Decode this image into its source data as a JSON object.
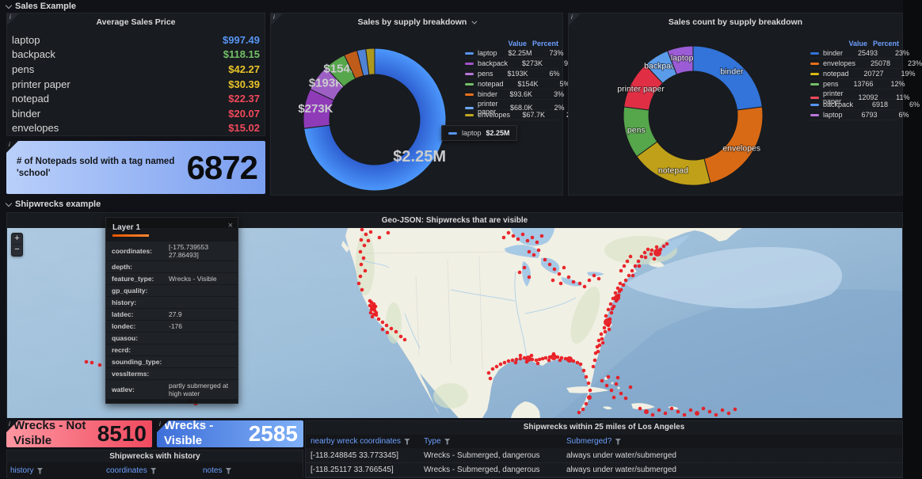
{
  "sections": {
    "sales": "Sales Example",
    "shipwrecks": "Shipwrecks example"
  },
  "avg_sales": {
    "title": "Average Sales Price",
    "rows": [
      {
        "label": "laptop",
        "value": "$997.49",
        "color": "#5794f2"
      },
      {
        "label": "backpack",
        "value": "$118.15",
        "color": "#73bf69"
      },
      {
        "label": "pens",
        "value": "$42.27",
        "color": "#eac52a"
      },
      {
        "label": "printer paper",
        "value": "$30.39",
        "color": "#eac52a"
      },
      {
        "label": "notepad",
        "value": "$22.37",
        "color": "#f2495c"
      },
      {
        "label": "binder",
        "value": "$20.07",
        "color": "#f2495c"
      },
      {
        "label": "envelopes",
        "value": "$15.02",
        "color": "#f2495c"
      }
    ]
  },
  "notepad_stat": {
    "label": "# of Notepads sold with a tag named 'school'",
    "value": "6872"
  },
  "chart_data": [
    {
      "type": "pie",
      "title": "Sales by supply breakdown",
      "labels": "value",
      "legend_position": "right",
      "legend_headers": [
        "Value",
        "Percent"
      ],
      "series": [
        {
          "name": "laptop",
          "value": "$2.25M",
          "percent": 73,
          "color": "#3d78e8",
          "swatch": "#5794f2"
        },
        {
          "name": "backpack",
          "value": "$273K",
          "percent": 9,
          "color": "#8f3bb8",
          "swatch": "#a352cc"
        },
        {
          "name": "pens",
          "value": "$193K",
          "percent": 6,
          "color": "#9d5fc4",
          "swatch": "#b877d9"
        },
        {
          "name": "notepad",
          "value": "$154K",
          "percent": 5,
          "color": "#56a64b",
          "swatch": "#73bf69"
        },
        {
          "name": "binder",
          "value": "$93.6K",
          "percent": 3,
          "color": "#c05c1a",
          "swatch": "#e8701a"
        },
        {
          "name": "printer paper",
          "value": "$68.0K",
          "percent": 2,
          "color": "#5083d6",
          "swatch": "#6ca7f2"
        },
        {
          "name": "envelopes",
          "value": "$67.7K",
          "percent": 2,
          "color": "#ad981f",
          "swatch": "#c0a722"
        }
      ],
      "tooltip": {
        "name": "laptop",
        "value": "$2.25M",
        "swatch": "#5794f2"
      }
    },
    {
      "type": "pie",
      "title": "Sales count by supply breakdown",
      "labels": "name",
      "legend_position": "right",
      "legend_headers": [
        "Value",
        "Percent"
      ],
      "series": [
        {
          "name": "binder",
          "value": "25493",
          "percent": 23,
          "color": "#3274d9",
          "swatch": "#3274d9"
        },
        {
          "name": "envelopes",
          "value": "25078",
          "percent": 23,
          "color": "#d96a15",
          "swatch": "#e8701a"
        },
        {
          "name": "notepad",
          "value": "20727",
          "percent": 19,
          "color": "#bfa018",
          "swatch": "#d9ba14"
        },
        {
          "name": "pens",
          "value": "13766",
          "percent": 12,
          "color": "#56a64b",
          "swatch": "#73bf69"
        },
        {
          "name": "printer paper",
          "value": "12092",
          "percent": 11,
          "color": "#e02f44",
          "swatch": "#f2495c"
        },
        {
          "name": "backpack",
          "value": "6918",
          "percent": 6,
          "color": "#5b9cea",
          "swatch": "#5794f2"
        },
        {
          "name": "laptop",
          "value": "6793",
          "percent": 6,
          "color": "#9b5cd6",
          "swatch": "#b877d9"
        }
      ]
    }
  ],
  "map": {
    "title": "Geo-JSON: Shipwrecks that are visible",
    "zoom_in": "+",
    "zoom_out": "−",
    "marker_color": "#e8191f",
    "tooltip": {
      "title": "Layer 1",
      "close": "×",
      "fields": [
        {
          "label": "coordinates:",
          "value": "[-175.739553 27.86493]"
        },
        {
          "label": "depth:",
          "value": ""
        },
        {
          "label": "feature_type:",
          "value": "Wrecks - Visible"
        },
        {
          "label": "gp_quality:",
          "value": ""
        },
        {
          "label": "history:",
          "value": ""
        },
        {
          "label": "latdec:",
          "value": "27.9"
        },
        {
          "label": "londec:",
          "value": "-176"
        },
        {
          "label": "quasou:",
          "value": ""
        },
        {
          "label": "recrd:",
          "value": ""
        },
        {
          "label": "sounding_type:",
          "value": ""
        },
        {
          "label": "vesslterms:",
          "value": ""
        },
        {
          "label": "watlev:",
          "value": "partly submerged at high water"
        }
      ]
    },
    "dots": [
      [
        448,
        2
      ],
      [
        453,
        8
      ],
      [
        447,
        15
      ],
      [
        451,
        22
      ],
      [
        446,
        30
      ],
      [
        450,
        38
      ],
      [
        447,
        46
      ],
      [
        452,
        54
      ],
      [
        446,
        61
      ],
      [
        456,
        16
      ],
      [
        459,
        5
      ],
      [
        470,
        12
      ],
      [
        481,
        6
      ],
      [
        444,
        70
      ],
      [
        448,
        78
      ],
      [
        460,
        94
      ],
      [
        463,
        96
      ],
      [
        458,
        98
      ],
      [
        462,
        100,
        4
      ],
      [
        465,
        99
      ],
      [
        460,
        103
      ],
      [
        464,
        104
      ],
      [
        459,
        107
      ],
      [
        463,
        109
      ],
      [
        466,
        107
      ],
      [
        461,
        112
      ],
      [
        458,
        92
      ],
      [
        469,
        115
      ],
      [
        474,
        119
      ],
      [
        479,
        123
      ],
      [
        485,
        127
      ],
      [
        491,
        131
      ],
      [
        480,
        132
      ],
      [
        474,
        128
      ],
      [
        497,
        137
      ],
      [
        502,
        141
      ],
      [
        466,
        110
      ],
      [
        610,
        190
      ],
      [
        608,
        183
      ],
      [
        613,
        178
      ],
      [
        618,
        175
      ],
      [
        623,
        172
      ],
      [
        628,
        170
      ],
      [
        633,
        168
      ],
      [
        638,
        167
      ],
      [
        643,
        166
      ],
      [
        648,
        165
      ],
      [
        653,
        164
      ],
      [
        658,
        165,
        4
      ],
      [
        663,
        166
      ],
      [
        668,
        167
      ],
      [
        672,
        166
      ],
      [
        676,
        165
      ],
      [
        680,
        164
      ],
      [
        685,
        163
      ],
      [
        690,
        163,
        4
      ],
      [
        695,
        163
      ],
      [
        700,
        164
      ],
      [
        705,
        165
      ],
      [
        710,
        166,
        4
      ],
      [
        715,
        168
      ],
      [
        720,
        170
      ],
      [
        724,
        172
      ],
      [
        642,
        170
      ],
      [
        656,
        169
      ],
      [
        670,
        171
      ],
      [
        684,
        167
      ],
      [
        698,
        167
      ],
      [
        648,
        161
      ],
      [
        662,
        161
      ],
      [
        690,
        159
      ],
      [
        728,
        180
      ],
      [
        731,
        188
      ],
      [
        734,
        196
      ],
      [
        736,
        205
      ],
      [
        735,
        214,
        3
      ],
      [
        731,
        222
      ],
      [
        727,
        229
      ],
      [
        722,
        233
      ],
      [
        740,
        175
      ],
      [
        742,
        167
      ],
      [
        751,
        193
      ],
      [
        757,
        199
      ],
      [
        763,
        205
      ],
      [
        769,
        197
      ],
      [
        775,
        209
      ],
      [
        781,
        215
      ],
      [
        787,
        201
      ],
      [
        771,
        189
      ],
      [
        759,
        188
      ],
      [
        766,
        214
      ],
      [
        743,
        158
      ],
      [
        745,
        150
      ],
      [
        747,
        142
      ],
      [
        750,
        134
      ],
      [
        754,
        126
      ],
      [
        758,
        119,
        5
      ],
      [
        756,
        111
      ],
      [
        759,
        103
      ],
      [
        762,
        96
      ],
      [
        765,
        89
      ],
      [
        768,
        82
      ],
      [
        771,
        76
      ],
      [
        774,
        70
      ],
      [
        746,
        156
      ],
      [
        748,
        148
      ],
      [
        751,
        140
      ],
      [
        755,
        131
      ],
      [
        759,
        123
      ],
      [
        761,
        115
      ],
      [
        763,
        107
      ],
      [
        766,
        99
      ],
      [
        769,
        92
      ],
      [
        772,
        85
      ],
      [
        775,
        78
      ],
      [
        778,
        72
      ],
      [
        760,
        128
      ],
      [
        752,
        145
      ],
      [
        764,
        102
      ],
      [
        770,
        88,
        4
      ],
      [
        773,
        80
      ],
      [
        781,
        66
      ],
      [
        785,
        60
      ],
      [
        789,
        54
      ],
      [
        793,
        48
      ],
      [
        797,
        42
      ],
      [
        801,
        36
      ],
      [
        805,
        31
      ],
      [
        809,
        27
      ],
      [
        813,
        33
      ],
      [
        817,
        39
      ],
      [
        821,
        31,
        5
      ],
      [
        825,
        27
      ],
      [
        829,
        23
      ],
      [
        833,
        20
      ],
      [
        790,
        60
      ],
      [
        798,
        48
      ],
      [
        806,
        37
      ],
      [
        814,
        28
      ],
      [
        820,
        24
      ],
      [
        639,
        10
      ],
      [
        645,
        14
      ],
      [
        651,
        8
      ],
      [
        657,
        16
      ],
      [
        663,
        12
      ],
      [
        669,
        18
      ],
      [
        675,
        10
      ],
      [
        659,
        30
      ],
      [
        665,
        34
      ],
      [
        671,
        28
      ],
      [
        679,
        40
      ],
      [
        685,
        46
      ],
      [
        691,
        52
      ],
      [
        697,
        58
      ],
      [
        703,
        50
      ],
      [
        709,
        62
      ],
      [
        715,
        68
      ],
      [
        699,
        70
      ],
      [
        689,
        66
      ],
      [
        653,
        50
      ],
      [
        647,
        56
      ],
      [
        659,
        62
      ],
      [
        723,
        70
      ],
      [
        729,
        74
      ],
      [
        735,
        66
      ],
      [
        741,
        60
      ],
      [
        747,
        64
      ],
      [
        633,
        6
      ],
      [
        627,
        12
      ],
      [
        775,
        54
      ],
      [
        779,
        48
      ],
      [
        783,
        42
      ],
      [
        787,
        36
      ],
      [
        799,
        228
      ],
      [
        807,
        232,
        3
      ],
      [
        815,
        236
      ],
      [
        823,
        230
      ],
      [
        831,
        234
      ],
      [
        839,
        228
      ],
      [
        847,
        232
      ],
      [
        855,
        236
      ],
      [
        863,
        230
      ],
      [
        871,
        234,
        3
      ],
      [
        879,
        228
      ],
      [
        887,
        232
      ],
      [
        895,
        236
      ],
      [
        903,
        230
      ],
      [
        911,
        234
      ],
      [
        919,
        229
      ],
      [
        100,
        169
      ],
      [
        107,
        170
      ],
      [
        117,
        173
      ],
      [
        143,
        187
      ],
      [
        231,
        219,
        3
      ],
      [
        238,
        221,
        3
      ]
    ]
  },
  "stats": {
    "not_visible": {
      "label": "Wrecks - Not Visible",
      "value": "8510"
    },
    "visible": {
      "label": "Wrecks - Visible",
      "value": "2585"
    }
  },
  "tables": {
    "la": {
      "title": "Shipwrecks within 25 miles of Los Angeles",
      "columns": [
        "nearby wreck coordinates",
        "Type",
        "Submerged?"
      ],
      "rows": [
        [
          "[-118.248845 33.773345]",
          "Wrecks - Submerged, dangerous",
          "always under water/submerged"
        ],
        [
          "[-118.25117 33.766545]",
          "Wrecks - Submerged, dangerous",
          "always under water/submerged"
        ]
      ]
    },
    "history": {
      "title": "Shipwrecks with history",
      "columns": [
        "history",
        "coordinates",
        "notes"
      ],
      "rows": []
    }
  }
}
